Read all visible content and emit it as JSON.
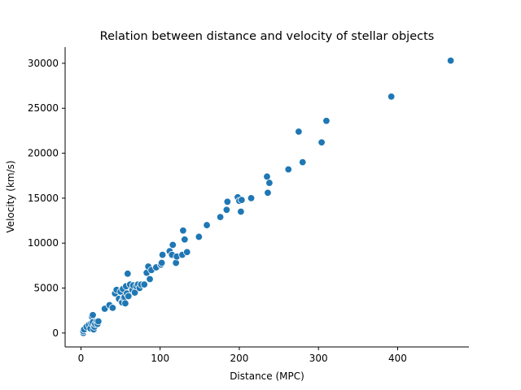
{
  "chart_data": {
    "type": "scatter",
    "title": "Relation between distance and velocity of stellar objects",
    "xlabel": "Distance (MPC)",
    "ylabel": "Velocity (km/s)",
    "xlim": [
      -20,
      490
    ],
    "ylim": [
      -1550,
      31800
    ],
    "xticks": [
      0,
      100,
      200,
      300,
      400
    ],
    "yticks": [
      0,
      5000,
      10000,
      15000,
      20000,
      25000,
      30000
    ],
    "grid": false,
    "legend": "none",
    "marker_color": "#1f77b4",
    "marker_edge": "#ffffff",
    "series": [
      {
        "x": [
          3,
          3,
          4,
          7,
          10,
          12,
          13,
          14,
          15,
          15,
          16,
          17,
          18,
          20,
          21,
          22,
          30,
          36,
          40,
          43,
          45,
          48,
          50,
          52,
          52,
          53,
          54,
          55,
          56,
          57,
          58,
          59,
          60,
          62,
          65,
          66,
          68,
          70,
          72,
          74,
          76,
          80,
          83,
          85,
          87,
          89,
          95,
          101,
          102,
          103,
          112,
          115,
          116,
          120,
          121,
          128,
          129,
          131,
          134,
          149,
          159,
          176,
          184,
          185,
          198,
          200,
          202,
          203,
          215,
          235,
          236,
          238,
          262,
          275,
          280,
          304,
          310,
          392,
          467
        ],
        "y": [
          0,
          200,
          400,
          700,
          900,
          500,
          1100,
          1800,
          2000,
          1200,
          400,
          700,
          1000,
          1300,
          1000,
          1300,
          2700,
          3100,
          2800,
          4400,
          4800,
          3800,
          4600,
          3500,
          3400,
          4900,
          3900,
          4000,
          3300,
          5200,
          4400,
          6600,
          4100,
          5400,
          4800,
          5300,
          4500,
          5200,
          5400,
          5000,
          5400,
          5400,
          6700,
          7400,
          6000,
          7000,
          7300,
          7600,
          7800,
          8700,
          9100,
          8700,
          9800,
          7800,
          8500,
          8700,
          11400,
          10400,
          9000,
          10700,
          12000,
          12900,
          13700,
          14600,
          15100,
          14700,
          13500,
          14800,
          15000,
          17400,
          15600,
          16700,
          18200,
          22400,
          19000,
          21200,
          23600,
          26300,
          30300
        ]
      }
    ]
  }
}
